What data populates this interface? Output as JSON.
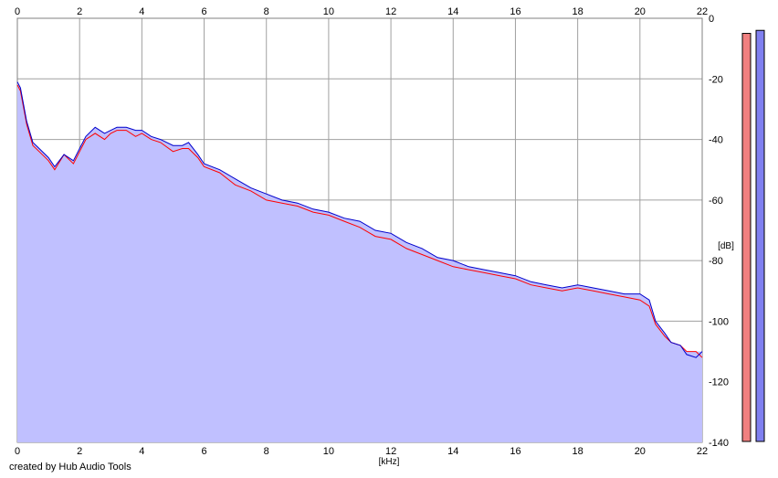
{
  "credit": "created by Hub Audio Tools",
  "chart_data": {
    "type": "area",
    "xlabel": "[kHz]",
    "ylabel": "[dB]",
    "xlim": [
      0,
      22
    ],
    "ylim": [
      -140,
      0
    ],
    "x_ticks": [
      "0",
      "2",
      "4",
      "6",
      "8",
      "10",
      "12",
      "14",
      "16",
      "18",
      "20",
      "22"
    ],
    "y_ticks": [
      "0",
      "-20",
      "-40",
      "-60",
      "-80",
      "-100",
      "-120",
      "-140"
    ],
    "grid": true,
    "colors": {
      "fill": "#c0c0ff",
      "channel_1": "#ff0000",
      "channel_2": "#0000cc",
      "grid": "#a0a0a0",
      "axis": "#808080",
      "meter_left": "#f08080",
      "meter_right": "#8080f0"
    },
    "series": [
      {
        "x": [
          0,
          0.1,
          0.3,
          0.5,
          0.7,
          1.0,
          1.2,
          1.5,
          1.8,
          2.0,
          2.2,
          2.5,
          2.8,
          3.0,
          3.2,
          3.5,
          3.8,
          4.0,
          4.3,
          4.6,
          5.0,
          5.3,
          5.5,
          5.8,
          6.0,
          6.5,
          7.0,
          7.5,
          8.0,
          8.5,
          9.0,
          9.5,
          10.0,
          10.5,
          11.0,
          11.5,
          12.0,
          12.5,
          13.0,
          13.5,
          14.0,
          14.5,
          15.0,
          15.5,
          16.0,
          16.5,
          17.0,
          17.5,
          18.0,
          18.5,
          19.0,
          19.5,
          20.0,
          20.3,
          20.5,
          20.8,
          21.0,
          21.3,
          21.5,
          21.8,
          22.0
        ],
        "values": [
          -22,
          -24,
          -35,
          -42,
          -44,
          -47,
          -50,
          -45,
          -48,
          -44,
          -40,
          -38,
          -40,
          -38,
          -37,
          -37,
          -39,
          -38,
          -40,
          -41,
          -44,
          -43,
          -43,
          -46,
          -49,
          -51,
          -55,
          -57,
          -60,
          -61,
          -62,
          -64,
          -65,
          -67,
          -69,
          -72,
          -73,
          -76,
          -78,
          -80,
          -82,
          -83,
          -84,
          -85,
          -86,
          -88,
          -89,
          -90,
          -89,
          -90,
          -91,
          -92,
          -93,
          -95,
          -101,
          -105,
          -107,
          -108,
          -110,
          -110,
          -112
        ]
      },
      {
        "x": [
          0,
          0.1,
          0.3,
          0.5,
          0.7,
          1.0,
          1.2,
          1.5,
          1.8,
          2.0,
          2.2,
          2.5,
          2.8,
          3.0,
          3.2,
          3.5,
          3.8,
          4.0,
          4.3,
          4.6,
          5.0,
          5.3,
          5.5,
          5.8,
          6.0,
          6.5,
          7.0,
          7.5,
          8.0,
          8.5,
          9.0,
          9.5,
          10.0,
          10.5,
          11.0,
          11.5,
          12.0,
          12.5,
          13.0,
          13.5,
          14.0,
          14.5,
          15.0,
          15.5,
          16.0,
          16.5,
          17.0,
          17.5,
          18.0,
          18.5,
          19.0,
          19.5,
          20.0,
          20.3,
          20.5,
          20.8,
          21.0,
          21.3,
          21.5,
          21.8,
          22.0
        ],
        "values": [
          -21,
          -23,
          -34,
          -41,
          -43,
          -46,
          -49,
          -45,
          -47,
          -43,
          -39,
          -36,
          -38,
          -37,
          -36,
          -36,
          -37,
          -37,
          -39,
          -40,
          -42,
          -42,
          -41,
          -45,
          -48,
          -50,
          -53,
          -56,
          -58,
          -60,
          -61,
          -63,
          -64,
          -66,
          -67,
          -70,
          -71,
          -74,
          -76,
          -79,
          -80,
          -82,
          -83,
          -84,
          -85,
          -87,
          -88,
          -89,
          -88,
          -89,
          -90,
          -91,
          -91,
          -93,
          -100,
          -104,
          -107,
          -108,
          -111,
          -112,
          -110
        ]
      }
    ],
    "meters": [
      {
        "channel": "left",
        "level_db": -5
      },
      {
        "channel": "right",
        "level_db": -4
      }
    ]
  }
}
